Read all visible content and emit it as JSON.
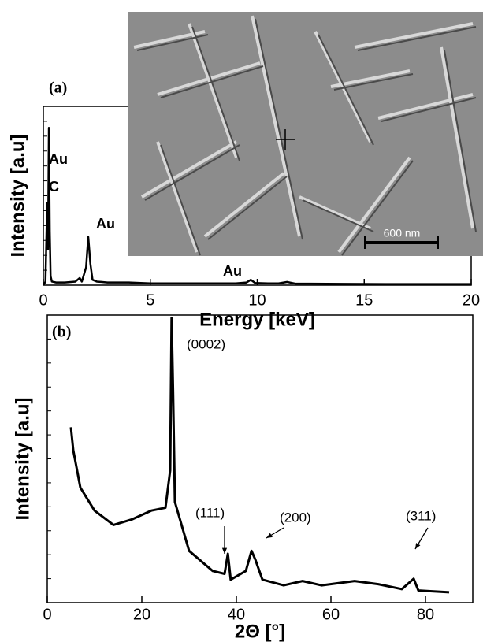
{
  "chart_data": [
    {
      "type": "line",
      "panel": "(a)",
      "x_label": "Energy [keV]",
      "y_label": "Intensity [a.u]",
      "xlim": [
        0,
        20
      ],
      "xticks": [
        0,
        5,
        10,
        15,
        20
      ],
      "ylim": [
        0,
        100
      ],
      "color": "#000000",
      "annotations": [
        "Au",
        "C",
        "Au",
        "Au"
      ],
      "inset_scale": "600 nm",
      "x": [
        0,
        0.1,
        0.18,
        0.22,
        0.26,
        0.3,
        0.34,
        0.4,
        0.6,
        1,
        1.5,
        1.7,
        1.8,
        2.0,
        2.1,
        2.2,
        2.3,
        2.5,
        3,
        4,
        5,
        6,
        7,
        8,
        9,
        9.5,
        9.7,
        9.9,
        10.5,
        11,
        11.4,
        11.8,
        12.5,
        14,
        16,
        18,
        20
      ],
      "values": [
        0,
        2,
        46,
        20,
        88,
        30,
        5,
        2,
        1.5,
        1.5,
        2,
        4,
        2,
        10,
        27,
        12,
        3,
        2,
        1.5,
        1.5,
        1,
        1,
        1,
        1,
        1,
        1.5,
        3,
        1.2,
        1,
        1,
        1.8,
        0.8,
        0.8,
        0.7,
        0.6,
        0.6,
        0.6
      ]
    },
    {
      "type": "line",
      "panel": "(b)",
      "x_label": "2Θ [°]",
      "y_label": "Intensity [a.u]",
      "xlim": [
        0,
        90
      ],
      "xticks": [
        0,
        20,
        40,
        60,
        80
      ],
      "ylim": [
        0,
        100
      ],
      "color": "#000000",
      "annotations": [
        "(0002)",
        "(111)",
        "(200)",
        "(311)"
      ],
      "x": [
        5,
        5.5,
        7,
        10,
        14,
        18,
        22,
        25,
        26,
        26.3,
        26.6,
        27,
        30,
        35,
        37.5,
        38.2,
        38.8,
        42,
        43.2,
        44,
        45.5,
        50,
        54,
        58,
        65,
        70,
        75,
        77.5,
        78.5,
        85
      ],
      "values": [
        61,
        53,
        40,
        32,
        27,
        29,
        32,
        33,
        46,
        99,
        74,
        35,
        18,
        11,
        10,
        17,
        8,
        11,
        18,
        15,
        8,
        6,
        7.5,
        6,
        7.5,
        6.4,
        4.7,
        8.3,
        4.2,
        3.6
      ]
    }
  ]
}
